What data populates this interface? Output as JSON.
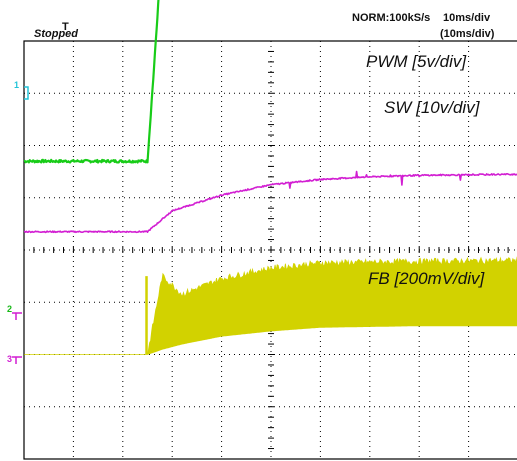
{
  "header": {
    "status": "Stopped",
    "acquisition": "NORM:100kS/s",
    "timebase": "10ms/div",
    "timebase_sub": "(10ms/div)"
  },
  "chart_data": {
    "type": "line",
    "title": "",
    "xlabel": "",
    "ylabel": "",
    "x_unit": "ms",
    "x_range": [
      0,
      50
    ],
    "x_divisions": 10,
    "y_divisions": 8,
    "grid": true,
    "trigger_position_ms": 25,
    "series": [
      {
        "name": "PWM [5v/div]",
        "channel": "1",
        "color": "#22c4d8",
        "style": "step",
        "x": [
          0,
          9.5,
          9.6,
          50
        ],
        "y": [
          7.0,
          7.0,
          7.7,
          7.7
        ]
      },
      {
        "name": "SW [10v/div]",
        "channel": "",
        "color": "#18cc18",
        "style": "line",
        "x": [
          0,
          12.5,
          13.2,
          14,
          17,
          20,
          25,
          30,
          40,
          50
        ],
        "y": [
          1.7,
          1.7,
          3.6,
          5.9,
          6.2,
          6.3,
          6.4,
          6.45,
          6.45,
          6.45
        ]
      },
      {
        "name": "FB [200mV/div]",
        "channel": "2",
        "color": "#d21fd2",
        "style": "line",
        "x": [
          0,
          12.5,
          15,
          20,
          25,
          30,
          35,
          40,
          50
        ],
        "y": [
          0.35,
          0.35,
          0.75,
          1.05,
          1.25,
          1.35,
          1.4,
          1.43,
          1.45
        ]
      },
      {
        "name": "",
        "channel": "3",
        "color": "#d2d200",
        "style": "band",
        "x": [
          0,
          12.5,
          14,
          16,
          20,
          25,
          30,
          40,
          50
        ],
        "y_top": [
          -2.0,
          -2.0,
          -0.5,
          -0.85,
          -0.55,
          -0.35,
          -0.25,
          -0.22,
          -0.2
        ],
        "y_bottom": [
          -2.0,
          -2.0,
          -1.9,
          -1.8,
          -1.65,
          -1.55,
          -1.48,
          -1.45,
          -1.45
        ],
        "spike": {
          "x": 12.4,
          "y": -0.5
        }
      }
    ]
  },
  "labels": {
    "pwm": "PWM [5v/div]",
    "sw": "SW [10v/div]",
    "fb": "FB [200mV/div]"
  },
  "markers": {
    "ch1": "1",
    "ch2": "2",
    "ch3": "3",
    "trigger": "T"
  }
}
